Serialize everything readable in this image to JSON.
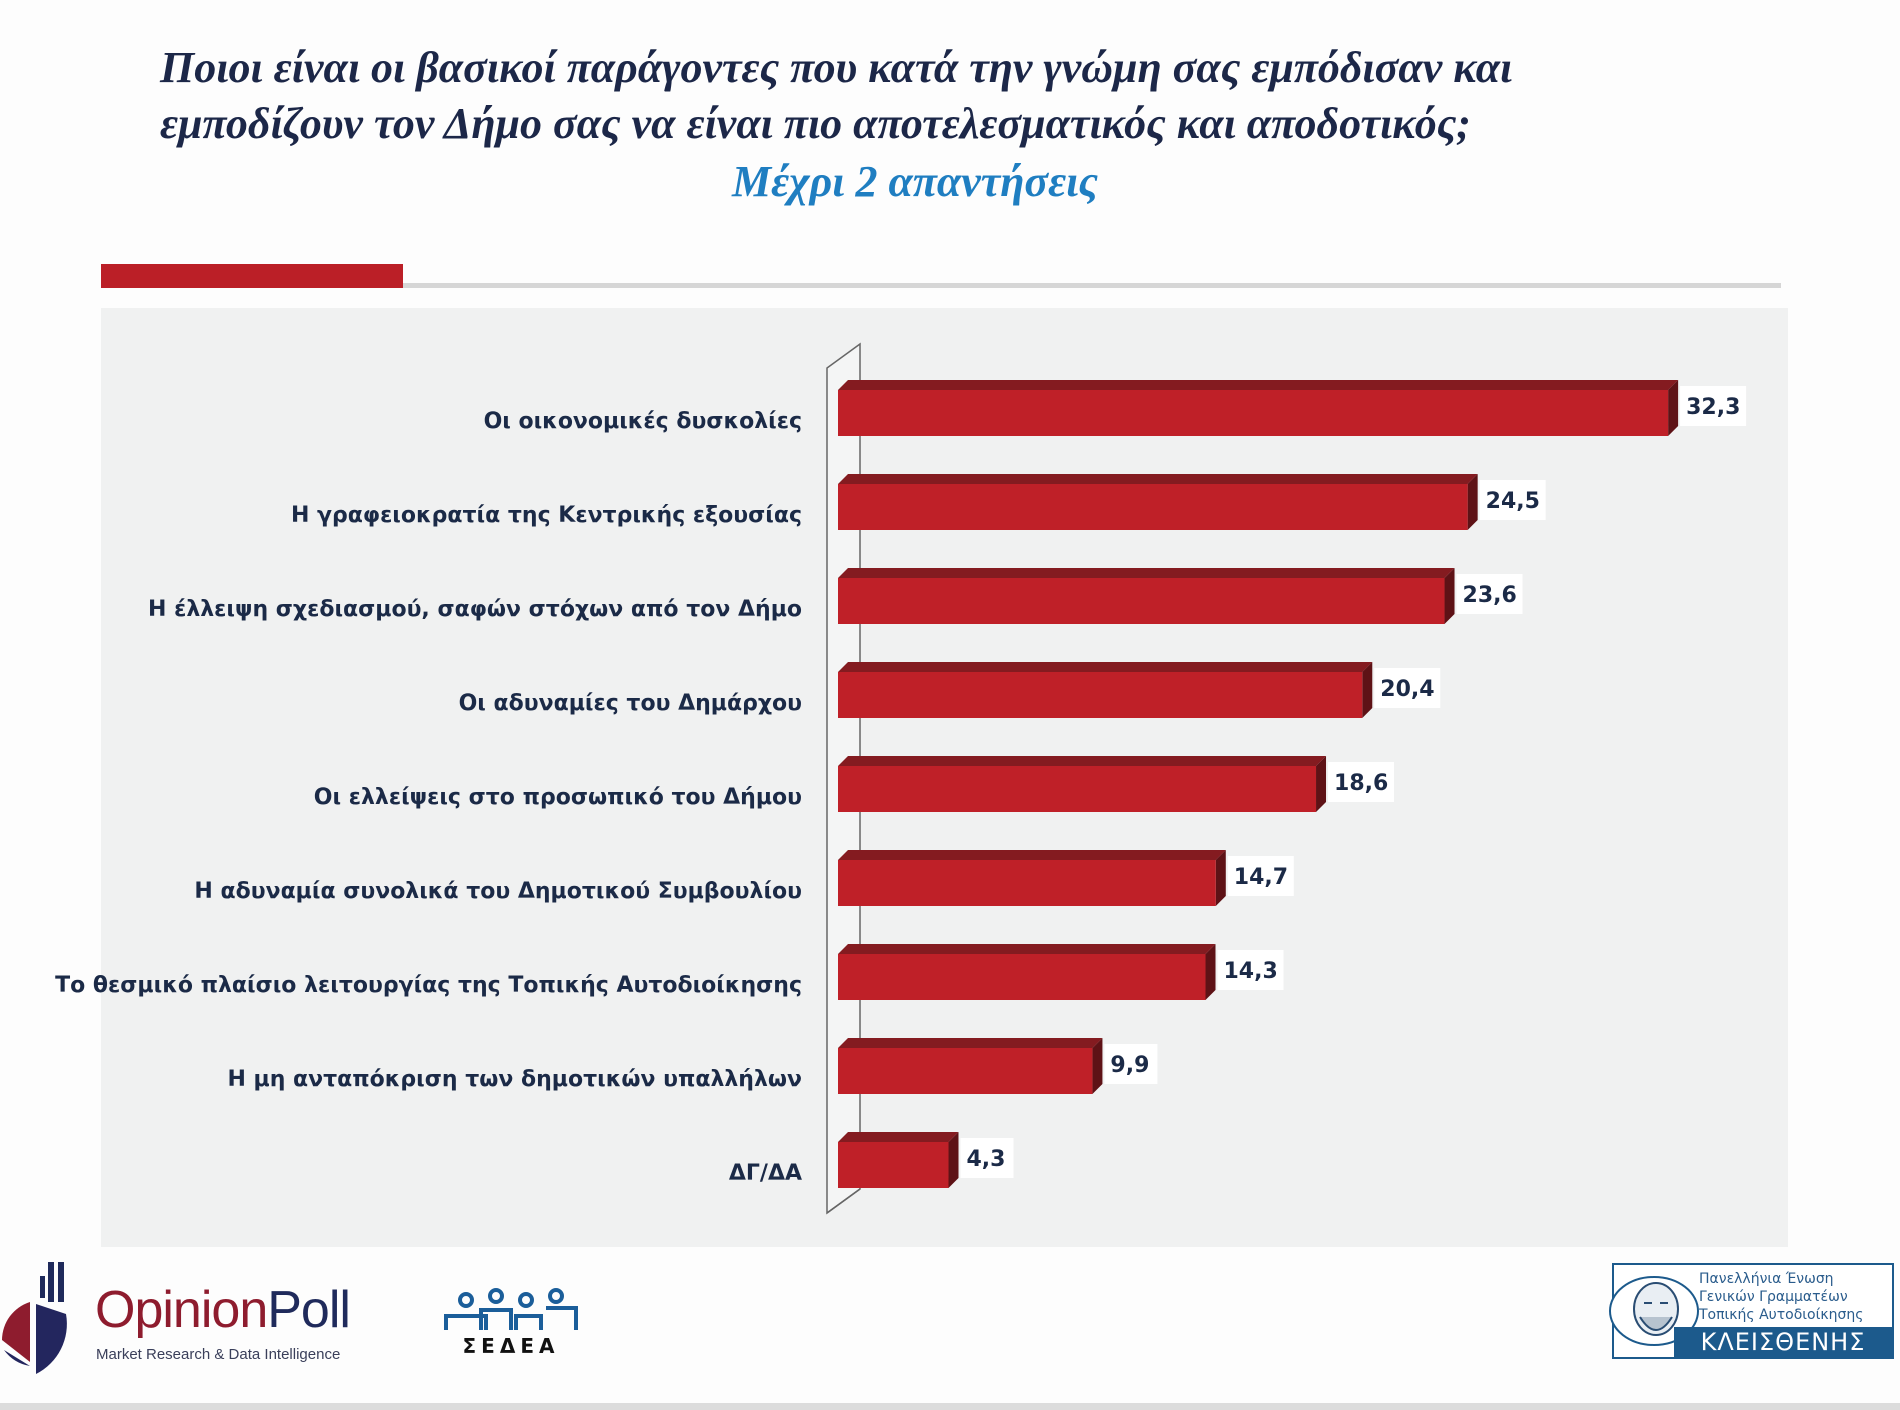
{
  "header": {
    "title_line1": "Ποιοι είναι οι βασικοί παράγοντες  που κατά την γνώμη σας εμπόδισαν και",
    "title_line2": "εμποδίζουν τον Δήμο σας να είναι πιο αποτελεσματικός και αποδοτικός;",
    "subtitle": "Μέχρι 2 απαντήσεις"
  },
  "colors": {
    "bar_front": "#bf2028",
    "bar_top": "#841b20",
    "bar_side": "#5e1216",
    "accent": "#bb1f27",
    "title": "#1c2748",
    "subtitle": "#1f7ec1"
  },
  "chart_data": {
    "type": "bar",
    "orientation": "horizontal",
    "style": "3d",
    "title": "Ποιοι είναι οι βασικοί παράγοντες  που κατά την γνώμη σας εμπόδισαν και εμποδίζουν τον Δήμο σας να είναι πιο αποτελεσματικός και αποδοτικός;",
    "subtitle": "Μέχρι 2 απαντήσεις",
    "xlabel": "",
    "ylabel": "",
    "grid": false,
    "legend": "none",
    "xlim": [
      0,
      35
    ],
    "categories": [
      "Οι οικονομικές δυσκολίες",
      "Η γραφειοκρατία της Κεντρικής εξουσίας",
      "Η έλλειψη σχεδιασμού, σαφών στόχων από τον Δήμο",
      "Οι αδυναμίες του Δημάρχου",
      "Οι ελλείψεις στο προσωπικό του Δήμου",
      "Η αδυναμία συνολικά του Δημοτικού Συμβουλίου",
      "Το θεσμικό πλαίσιο λειτουργίας της Τοπικής Αυτοδιοίκησης",
      "Η μη ανταπόκριση των δημοτικών υπαλλήλων",
      "ΔΓ/ΔΑ"
    ],
    "values": [
      32.3,
      24.5,
      23.6,
      20.4,
      18.6,
      14.7,
      14.3,
      9.9,
      4.3
    ],
    "value_labels": [
      "32,3",
      "24,5",
      "23,6",
      "20,4",
      "18,6",
      "14,7",
      "14,3",
      "9,9",
      "4,3"
    ]
  },
  "footer": {
    "opinionpoll_name_part1": "Opinion",
    "opinionpoll_name_part2": "Poll",
    "opinionpoll_tagline": "Market Research & Data Intelligence",
    "sedea_text": "ΣΕΔΕΑ",
    "kleisthenis_line1": "Πανελλήνια Ένωση",
    "kleisthenis_line2": "Γενικών Γραμματέων",
    "kleisthenis_line3": "Τοπικής Αυτοδιοίκησης",
    "kleisthenis_name": "ΚΛΕΙΣΘΕΝΗΣ"
  }
}
